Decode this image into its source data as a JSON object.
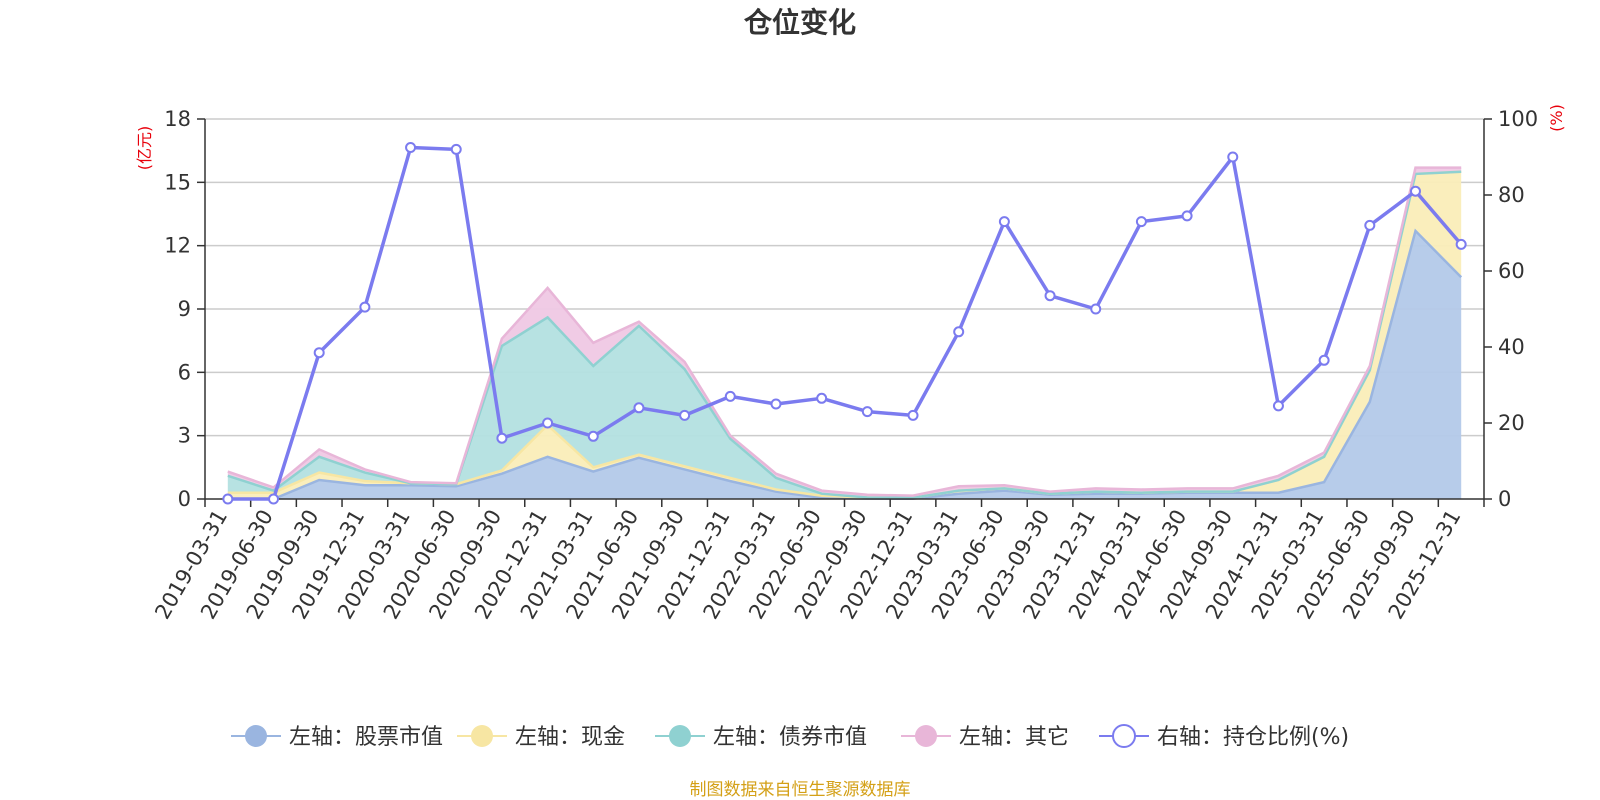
{
  "chart_data": {
    "type": "area",
    "title": "仓位变化",
    "left_unit": "(亿元)",
    "right_unit": "(%)",
    "source": "制图数据来自恒生聚源数据库",
    "left_axis": {
      "min": 0,
      "max": 18,
      "ticks": [
        0,
        3,
        6,
        9,
        12,
        15,
        18
      ]
    },
    "right_axis": {
      "min": 0,
      "max": 100,
      "ticks": [
        0,
        20,
        40,
        60,
        80,
        100
      ]
    },
    "categories": [
      "2019-03-31",
      "2019-06-30",
      "2019-09-30",
      "2019-12-31",
      "2020-03-31",
      "2020-06-30",
      "2020-09-30",
      "2020-12-31",
      "2021-03-31",
      "2021-06-30",
      "2021-09-30",
      "2021-12-31",
      "2022-03-31",
      "2022-06-30",
      "2022-09-30",
      "2022-12-31",
      "2023-03-31",
      "2023-06-30",
      "2023-09-30",
      "2023-12-31",
      "2024-03-31",
      "2024-06-30",
      "2024-09-30",
      "2024-12-31",
      "2025-03-31",
      "2025-06-30",
      "2025-09-30",
      "2025-12-31"
    ],
    "stacked_series": [
      {
        "name": "左轴：股票市值",
        "color": "#9ab5e0",
        "fill": "#b3c9e9",
        "values": [
          0,
          0,
          0.9,
          0.65,
          0.65,
          0.6,
          1.2,
          2.0,
          1.3,
          1.95,
          1.4,
          0.85,
          0.35,
          0.05,
          0.02,
          0.01,
          0.25,
          0.4,
          0.2,
          0.25,
          0.25,
          0.3,
          0.3,
          0.3,
          0.8,
          4.6,
          12.7,
          10.5
        ]
      },
      {
        "name": "左轴：现金",
        "color": "#f7e6a3",
        "fill": "#faedb8",
        "values": [
          0.3,
          0.3,
          0.35,
          0.2,
          0.1,
          0.1,
          0.15,
          1.5,
          0.2,
          0.15,
          0.15,
          0.15,
          0.1,
          0.1,
          0.05,
          0.05,
          0.15,
          0.1,
          0.05,
          0.1,
          0.05,
          0.05,
          0.05,
          0.6,
          1.2,
          1.5,
          2.7,
          5.0
        ]
      },
      {
        "name": "左轴：债券市值",
        "color": "#8fd1d1",
        "fill": "#b3e0e0",
        "values": [
          0.8,
          0.1,
          0.75,
          0.4,
          0,
          0,
          5.9,
          5.1,
          4.8,
          6.1,
          4.6,
          1.85,
          0.55,
          0.1,
          0,
          0,
          0,
          0,
          0,
          0,
          0,
          0,
          0,
          0,
          0,
          0,
          0,
          0
        ]
      },
      {
        "name": "左轴：其它",
        "color": "#e8b6d8",
        "fill": "#efc8e4",
        "values": [
          0.2,
          0.15,
          0.35,
          0.15,
          0.05,
          0.05,
          0.35,
          1.4,
          1.1,
          0.2,
          0.35,
          0.15,
          0.2,
          0.15,
          0.13,
          0.1,
          0.2,
          0.15,
          0.1,
          0.15,
          0.15,
          0.15,
          0.15,
          0.2,
          0.2,
          0.2,
          0.3,
          0.2
        ]
      }
    ],
    "line_series": {
      "name": "右轴：持仓比例(%)",
      "color": "#7b7bef",
      "values": [
        0,
        0,
        38.5,
        50.5,
        92.5,
        92,
        16,
        20,
        16.5,
        24,
        22,
        27,
        25,
        26.5,
        23,
        22,
        44,
        73,
        53.5,
        50,
        73,
        74.5,
        90,
        24.5,
        36.5,
        72,
        81,
        67
      ]
    },
    "legend_position": "bottom"
  }
}
